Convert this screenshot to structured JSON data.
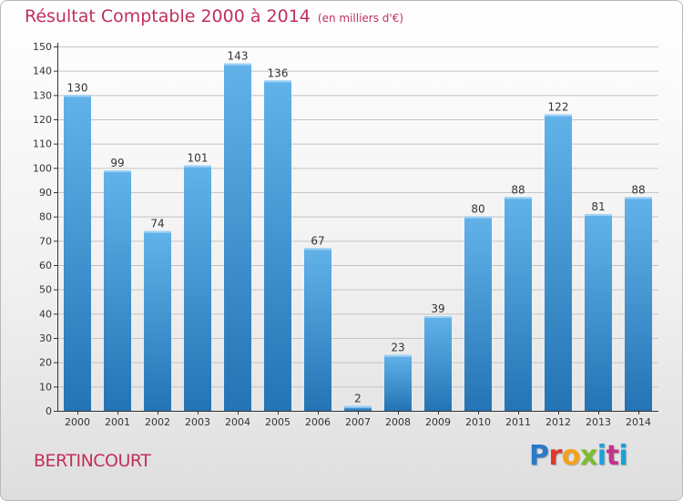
{
  "page": {
    "title": "Résultat Comptable 2000 à 2014",
    "unit": "(en milliers d'€)",
    "commune": "BERTINCOURT",
    "logo": [
      "P",
      "r",
      "o",
      "x",
      "i",
      "t",
      "i"
    ]
  },
  "colors": {
    "title": "#c0305a",
    "bar_top": "#62b2ea",
    "bar_bottom": "#2474b5",
    "axis": "#333333",
    "grid": "#c4c4c4"
  },
  "chart_data": {
    "type": "bar",
    "title": "Résultat Comptable 2000 à 2014",
    "subtitle": "(en milliers d'€)",
    "xlabel": "",
    "ylabel": "",
    "ylim": [
      0,
      150
    ],
    "yticks": [
      0,
      10,
      20,
      30,
      40,
      50,
      60,
      70,
      80,
      90,
      100,
      110,
      120,
      130,
      140,
      150
    ],
    "grid": true,
    "categories": [
      "2000",
      "2001",
      "2002",
      "2003",
      "2004",
      "2005",
      "2006",
      "2007",
      "2008",
      "2009",
      "2010",
      "2011",
      "2012",
      "2013",
      "2014"
    ],
    "values": [
      130,
      99,
      74,
      101,
      143,
      136,
      67,
      2,
      23,
      39,
      80,
      88,
      122,
      81,
      88
    ]
  }
}
